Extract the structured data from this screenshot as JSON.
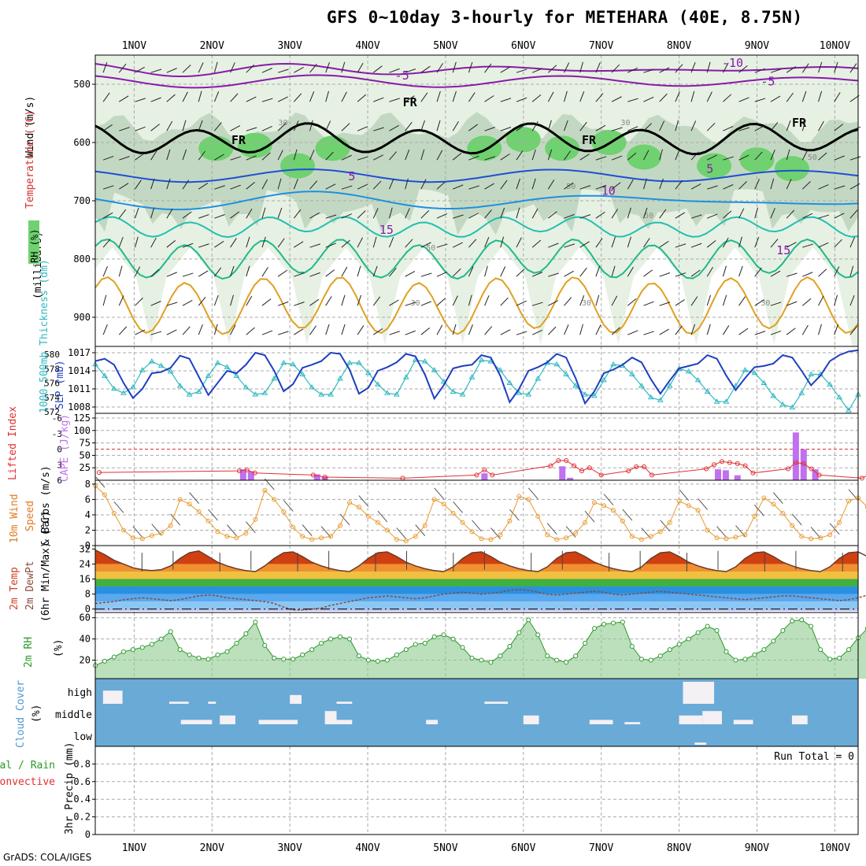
{
  "title": "GFS 0~10day 3-hourly for METEHARA (40E, 8.75N)",
  "credit": "GrADS: COLA/IGES",
  "date_labels": [
    "1NOV",
    "2NOV",
    "3NOV",
    "4NOV",
    "5NOV",
    "6NOV",
    "7NOV",
    "8NOV",
    "9NOV",
    "10NOV"
  ],
  "colors": {
    "rh_light": "#e6f1e3",
    "rh_mid": "#c3d8c2",
    "rh_green": "#6fd16f",
    "temp_purple": "#8a1aa8",
    "temp_blue": "#1e4fd6",
    "temp_lblue": "#1e90e0",
    "temp_teal": "#22c0b0",
    "temp_green": "#1fb98a",
    "temp_orange": "#e0a020",
    "slp": "#1f3fbf",
    "thickness": "#30b8c0",
    "cape": "#c070f0",
    "li": "#e03030",
    "wind": "#e89a30",
    "rh2m_fill": "#8fc98f",
    "rh2m_line": "#2a9a2a",
    "cloud": "#6aaad6",
    "cloud_white": "#f4f0f4"
  },
  "upper_air": {
    "ylabel_wind": "Wind (m/s)",
    "ylabel_temp": "Temperature (°C)",
    "ylabel_rh": "RH (%)",
    "ylabel_units": "(millibars)",
    "pressure_ticks": [
      500,
      600,
      700,
      800,
      900
    ],
    "ylim": [
      450,
      950
    ],
    "isotherm_labels": [
      {
        "text": "-10",
        "x": 7.55,
        "p": 470
      },
      {
        "text": "-5",
        "x": 3.35,
        "p": 492
      },
      {
        "text": "-5",
        "x": 8.05,
        "p": 502
      },
      {
        "text": "5",
        "x": 2.75,
        "p": 665
      },
      {
        "text": "5",
        "x": 7.35,
        "p": 652
      },
      {
        "text": "10",
        "x": 6.0,
        "p": 690
      },
      {
        "text": "15",
        "x": 3.15,
        "p": 757
      },
      {
        "text": "15",
        "x": 8.25,
        "p": 792
      },
      {
        "text": "FR",
        "x": 3.45,
        "p": 538
      },
      {
        "text": "FR",
        "x": 1.25,
        "p": 603
      },
      {
        "text": "FR",
        "x": 5.75,
        "p": 603
      },
      {
        "text": "FR",
        "x": 8.45,
        "p": 573
      }
    ],
    "rh_labels": [
      {
        "text": "30",
        "x": 1.85,
        "p": 570
      },
      {
        "text": "30",
        "x": 6.25,
        "p": 570
      },
      {
        "text": "30",
        "x": 9.65,
        "p": 580
      },
      {
        "text": "50",
        "x": 8.65,
        "p": 630
      },
      {
        "text": "50",
        "x": 5.55,
        "p": 680
      },
      {
        "text": "50",
        "x": 6.55,
        "p": 730
      },
      {
        "text": "50",
        "x": 3.75,
        "p": 785
      },
      {
        "text": "30",
        "x": 3.55,
        "p": 880
      },
      {
        "text": "30",
        "x": 5.75,
        "p": 880
      },
      {
        "text": "30",
        "x": 8.05,
        "p": 880
      }
    ]
  },
  "panels": {
    "slp_thick": {
      "ylabel_left": "1000-500mb Thickness (dm)",
      "ylabel_right": "SLP (mb)",
      "thick_ticks": [
        572,
        574,
        576,
        578,
        580
      ],
      "slp_ticks": [
        1008,
        1011,
        1014,
        1017
      ]
    },
    "cape": {
      "ylabel_left": "Lifted Index",
      "ylabel_right": "CAPE (J/kg)",
      "li_ticks": [
        6,
        3,
        0,
        -3,
        -6
      ],
      "li_tick_labels": [
        "6",
        "3",
        "0",
        "-3",
        "-6"
      ],
      "cape_ticks": [
        25,
        50,
        75,
        100,
        125
      ]
    },
    "wind10m": {
      "ylabel_a": "10m Wind",
      "ylabel_b": "Speed",
      "ylabel_c": "& Barbs (m/s)",
      "ticks": [
        0,
        2,
        4,
        6,
        8
      ]
    },
    "temp2m": {
      "ylabel_a": "2m Temp",
      "ylabel_b": "2m DewPt",
      "ylabel_c": "(6hr Min/Max) (°C)",
      "ticks": [
        0,
        8,
        16,
        24,
        32
      ]
    },
    "rh2m": {
      "ylabel": "2m RH",
      "unit": "(%)",
      "ticks": [
        20,
        40,
        60
      ]
    },
    "cloud": {
      "ylabel": "Cloud Cover",
      "unit": "(%)",
      "levels": [
        "high",
        "middle",
        "low"
      ]
    },
    "precip": {
      "ylabel_a": "Total / Rain",
      "ylabel_b": "Convective",
      "ylabel_c": "3hr Precip (mm)",
      "ticks": [
        "0",
        "0.2",
        "0.4",
        "0.6",
        "0.8"
      ],
      "run_total": "Run Total = 0"
    }
  },
  "chart_data": {
    "type": "line",
    "x_unit": "days since 1NOV 00Z",
    "xlim": [
      -0.5,
      9.3
    ],
    "slp_mb": [
      1015.6,
      1016.0,
      1015.0,
      1012.0,
      1009.5,
      1011.0,
      1013.6,
      1013.8,
      1014.5,
      1016.5,
      1016.0,
      1013.0,
      1010.0,
      1012.0,
      1014.0,
      1013.6,
      1015.0,
      1017.0,
      1016.6,
      1014.0,
      1010.6,
      1011.8,
      1014.5,
      1015.0,
      1015.6,
      1017.0,
      1016.8,
      1014.2,
      1010.2,
      1011.2,
      1014.0,
      1014.6,
      1015.4,
      1016.8,
      1016.4,
      1013.4,
      1009.4,
      1011.6,
      1014.4,
      1014.8,
      1015.0,
      1016.6,
      1016.2,
      1013.2,
      1008.8,
      1011.0,
      1014.0,
      1014.6,
      1015.4,
      1016.8,
      1016.2,
      1012.8,
      1008.6,
      1010.6,
      1013.6,
      1014.2,
      1015.0,
      1016.2,
      1015.4,
      1012.6,
      1010.2,
      1012.4,
      1014.4,
      1014.8,
      1015.2,
      1016.6,
      1016.0,
      1013.2,
      1010.8,
      1012.8,
      1014.6,
      1014.8,
      1015.2,
      1016.6,
      1016.2,
      1014.0,
      1011.6,
      1013.2,
      1015.6,
      1016.6,
      1017.2,
      1017.4
    ],
    "thickness_dm": [
      578.6,
      577.0,
      575.2,
      574.6,
      575.4,
      577.8,
      579.0,
      578.4,
      577.6,
      575.6,
      574.4,
      574.8,
      577.0,
      578.8,
      578.2,
      577.0,
      575.4,
      574.4,
      574.6,
      576.6,
      578.8,
      578.6,
      577.2,
      575.4,
      574.4,
      574.4,
      576.6,
      578.8,
      578.8,
      577.4,
      575.8,
      574.6,
      574.4,
      576.8,
      579.2,
      579.0,
      577.8,
      576.2,
      574.8,
      574.4,
      576.8,
      579.2,
      579.0,
      577.8,
      576.0,
      574.6,
      574.4,
      576.6,
      578.8,
      578.6,
      577.2,
      575.6,
      574.4,
      574.2,
      576.4,
      578.6,
      578.4,
      577.2,
      575.6,
      574.0,
      573.6,
      575.6,
      578.0,
      577.6,
      576.4,
      574.8,
      573.4,
      573.4,
      575.6,
      577.8,
      577.4,
      576.0,
      574.2,
      573.0,
      572.6,
      574.6,
      577.2,
      577.2,
      575.8,
      574.0,
      572.2,
      574.4
    ],
    "cape_bars": [
      {
        "x": 1.4,
        "v": 22
      },
      {
        "x": 1.5,
        "v": 18
      },
      {
        "x": 2.35,
        "v": 12
      },
      {
        "x": 2.45,
        "v": 8
      },
      {
        "x": 4.5,
        "v": 14
      },
      {
        "x": 5.5,
        "v": 28
      },
      {
        "x": 5.6,
        "v": 5
      },
      {
        "x": 7.5,
        "v": 22
      },
      {
        "x": 7.6,
        "v": 20
      },
      {
        "x": 7.75,
        "v": 10
      },
      {
        "x": 8.5,
        "v": 96
      },
      {
        "x": 8.6,
        "v": 62
      },
      {
        "x": 8.75,
        "v": 22
      }
    ],
    "lifted_index": [
      {
        "x": -0.45,
        "v": 4.5
      },
      {
        "x": 1.35,
        "v": 4.2
      },
      {
        "x": 1.45,
        "v": 4.0
      },
      {
        "x": 1.55,
        "v": 4.6
      },
      {
        "x": 2.3,
        "v": 5.0
      },
      {
        "x": 2.45,
        "v": 5.4
      },
      {
        "x": 3.45,
        "v": 5.6
      },
      {
        "x": 4.4,
        "v": 5.0
      },
      {
        "x": 4.5,
        "v": 4.0
      },
      {
        "x": 4.6,
        "v": 5.0
      },
      {
        "x": 5.35,
        "v": 3.2
      },
      {
        "x": 5.45,
        "v": 2.2
      },
      {
        "x": 5.55,
        "v": 2.2
      },
      {
        "x": 5.65,
        "v": 3.2
      },
      {
        "x": 5.75,
        "v": 4.2
      },
      {
        "x": 5.85,
        "v": 3.6
      },
      {
        "x": 6.0,
        "v": 5.0
      },
      {
        "x": 6.35,
        "v": 4.2
      },
      {
        "x": 6.45,
        "v": 3.4
      },
      {
        "x": 6.55,
        "v": 3.4
      },
      {
        "x": 6.65,
        "v": 5.0
      },
      {
        "x": 7.35,
        "v": 3.8
      },
      {
        "x": 7.45,
        "v": 3.0
      },
      {
        "x": 7.55,
        "v": 2.4
      },
      {
        "x": 7.65,
        "v": 2.6
      },
      {
        "x": 7.75,
        "v": 2.8
      },
      {
        "x": 7.85,
        "v": 3.2
      },
      {
        "x": 7.95,
        "v": 4.6
      },
      {
        "x": 8.4,
        "v": 3.8
      },
      {
        "x": 8.5,
        "v": 2.6
      },
      {
        "x": 8.6,
        "v": 2.8
      },
      {
        "x": 8.7,
        "v": 3.8
      },
      {
        "x": 8.8,
        "v": 5.0
      },
      {
        "x": 9.35,
        "v": 5.6
      },
      {
        "x": 9.5,
        "v": 4.4
      },
      {
        "x": 9.6,
        "v": 5.8
      }
    ],
    "wind10m_ms": [
      7.8,
      6.6,
      4.2,
      2.0,
      1.0,
      0.9,
      1.3,
      1.6,
      2.6,
      6.0,
      5.4,
      4.4,
      3.2,
      1.8,
      1.2,
      1.0,
      1.6,
      3.4,
      7.2,
      6.0,
      4.4,
      2.4,
      1.2,
      0.8,
      1.0,
      1.2,
      2.6,
      5.6,
      5.0,
      3.8,
      3.0,
      2.0,
      0.8,
      0.6,
      1.2,
      2.6,
      6.0,
      5.4,
      4.2,
      3.0,
      1.8,
      0.9,
      0.8,
      1.4,
      3.2,
      6.4,
      6.0,
      3.8,
      1.4,
      0.8,
      1.0,
      1.6,
      3.0,
      5.6,
      5.2,
      4.6,
      3.2,
      1.2,
      0.8,
      1.2,
      1.8,
      3.0,
      5.8,
      5.2,
      4.6,
      2.0,
      1.0,
      0.9,
      1.1,
      1.4,
      3.8,
      6.2,
      5.4,
      4.2,
      2.6,
      1.2,
      0.9,
      1.0,
      1.4,
      3.0,
      5.8,
      6.2,
      5.0
    ],
    "temp2m_c": [
      31.5,
      29,
      26,
      24,
      22,
      21,
      20.5,
      21,
      23,
      27,
      30,
      31,
      28,
      25,
      23,
      21.5,
      20.5,
      20,
      23,
      27,
      30,
      30.5,
      28,
      25,
      23,
      21.5,
      20.5,
      20,
      23,
      27,
      30,
      30.5,
      28,
      25,
      23,
      21.5,
      20.5,
      20,
      22.5,
      27,
      30,
      30.5,
      28,
      25,
      23,
      21.5,
      20.5,
      20,
      22.5,
      27,
      30,
      30.5,
      28,
      25,
      23,
      21.5,
      20.5,
      20,
      22.5,
      27,
      30,
      30.5,
      28,
      25,
      23,
      21.5,
      20.5,
      20,
      22.5,
      27,
      30,
      30.5,
      28,
      25,
      23,
      21.5,
      20.5,
      20,
      22.5,
      27,
      30,
      30.5,
      28,
      25,
      23,
      21.5,
      17.5,
      23
    ],
    "dewpt2m_c": [
      3,
      3.5,
      4,
      5,
      5.5,
      6,
      5.5,
      5,
      4.5,
      5,
      6,
      7,
      7.5,
      7,
      6,
      5.5,
      5,
      4.5,
      4,
      3,
      1,
      -0.5,
      -0.5,
      0,
      0.5,
      2,
      3,
      4,
      5,
      6,
      6.5,
      7,
      6.5,
      6,
      5.5,
      6,
      7,
      8,
      8.5,
      9,
      8.5,
      8,
      8.5,
      9,
      10,
      10.5,
      10,
      9,
      8,
      7.5,
      8,
      8.5,
      9,
      9.5,
      9,
      8,
      7.5,
      8,
      8.5,
      9,
      9.5,
      9,
      8.5,
      8,
      7.5,
      7,
      6.5,
      6,
      5.5,
      5,
      5.5,
      6,
      6.5,
      7,
      7,
      6.5,
      6,
      5.5,
      5,
      4.5,
      5,
      6,
      7.5,
      8.5
    ],
    "rh2m_pct": [
      15,
      19,
      23,
      28,
      30,
      32,
      35,
      40,
      47,
      30,
      25,
      22,
      21,
      25,
      28,
      36,
      45,
      56,
      34,
      22,
      21,
      21,
      25,
      30,
      36,
      40,
      42,
      40,
      24,
      20,
      19,
      20,
      25,
      30,
      35,
      36,
      42,
      44,
      40,
      32,
      22,
      20,
      18,
      24,
      33,
      46,
      58,
      44,
      24,
      20,
      18,
      24,
      36,
      50,
      54,
      55,
      56,
      33,
      21,
      20,
      24,
      30,
      35,
      40,
      46,
      52,
      48,
      28,
      20,
      21,
      25,
      30,
      38,
      48,
      57,
      58,
      52,
      30,
      21,
      22,
      30,
      41,
      50,
      56,
      52,
      32
    ],
    "cloud_high_pct": [
      {
        "x": -0.4,
        "w": 0.25,
        "v": 60
      },
      {
        "x": 0.45,
        "w": 0.25,
        "v": 10
      },
      {
        "x": 0.95,
        "w": 0.1,
        "v": 10
      },
      {
        "x": 2.0,
        "w": 0.15,
        "v": 40
      },
      {
        "x": 2.6,
        "w": 0.2,
        "v": 10
      },
      {
        "x": 4.5,
        "w": 0.3,
        "v": 10
      },
      {
        "x": 7.05,
        "w": 0.4,
        "v": 100
      }
    ],
    "cloud_mid_pct": [
      {
        "x": 0.6,
        "w": 0.4,
        "v": 20
      },
      {
        "x": 1.1,
        "w": 0.2,
        "v": 40
      },
      {
        "x": 1.6,
        "w": 0.5,
        "v": 20
      },
      {
        "x": 2.45,
        "w": 0.15,
        "v": 60
      },
      {
        "x": 2.6,
        "w": 0.2,
        "v": 20
      },
      {
        "x": 3.75,
        "w": 0.15,
        "v": 20
      },
      {
        "x": 5.0,
        "w": 0.2,
        "v": 40
      },
      {
        "x": 5.85,
        "w": 0.3,
        "v": 20
      },
      {
        "x": 6.3,
        "w": 0.2,
        "v": 10
      },
      {
        "x": 7.0,
        "w": 0.3,
        "v": 40
      },
      {
        "x": 7.3,
        "w": 0.25,
        "v": 60
      },
      {
        "x": 7.7,
        "w": 0.25,
        "v": 20
      },
      {
        "x": 8.45,
        "w": 0.2,
        "v": 40
      }
    ],
    "cloud_low_pct": [
      {
        "x": 7.2,
        "w": 0.15,
        "v": 10
      }
    ],
    "precip_mm": [],
    "precip_ylim": [
      0,
      1.0
    ]
  }
}
